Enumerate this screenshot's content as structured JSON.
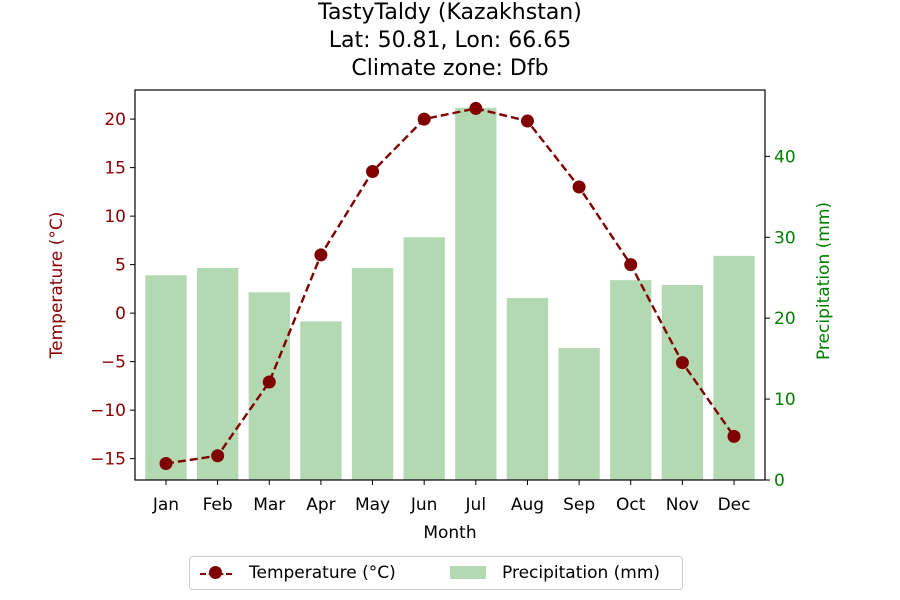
{
  "chart_data": {
    "type": "bar+line",
    "title_lines": [
      "TastyTaldy (Kazakhstan)",
      "Lat: 50.81, Lon: 66.65",
      "Climate zone: Dfb"
    ],
    "xlabel": "Month",
    "categories": [
      "Jan",
      "Feb",
      "Mar",
      "Apr",
      "May",
      "Jun",
      "Jul",
      "Aug",
      "Sep",
      "Oct",
      "Nov",
      "Dec"
    ],
    "left_axis": {
      "label": "Temperature (°C)",
      "color": "#8b0000",
      "ylim": [
        -17.2,
        23.0
      ],
      "ticks": [
        -15,
        -10,
        -5,
        0,
        5,
        10,
        15,
        20
      ],
      "tick_labels": [
        "−15",
        "−10",
        "−5",
        "0",
        "5",
        "10",
        "15",
        "20"
      ]
    },
    "right_axis": {
      "label": "Precipitation (mm)",
      "color": "#008000",
      "ylim": [
        0,
        48.2
      ],
      "ticks": [
        0,
        10,
        20,
        30,
        40
      ],
      "tick_labels": [
        "0",
        "10",
        "20",
        "30",
        "40"
      ]
    },
    "series": [
      {
        "name": "Temperature (°C)",
        "kind": "line",
        "axis": "left",
        "color": "#800000",
        "values": [
          -15.5,
          -14.7,
          -7.1,
          6.0,
          14.6,
          20.0,
          21.1,
          19.8,
          13.0,
          5.0,
          -5.1,
          -12.7
        ]
      },
      {
        "name": "Precipitation (mm)",
        "kind": "bar",
        "axis": "right",
        "color": "#b3d9b3",
        "values": [
          25.3,
          26.2,
          23.2,
          19.6,
          26.2,
          30.0,
          46.0,
          22.5,
          16.3,
          24.7,
          24.1,
          27.7
        ]
      }
    ],
    "legend": {
      "placement": "bottom-center",
      "entries": [
        "Temperature (°C)",
        "Precipitation (mm)"
      ]
    }
  }
}
